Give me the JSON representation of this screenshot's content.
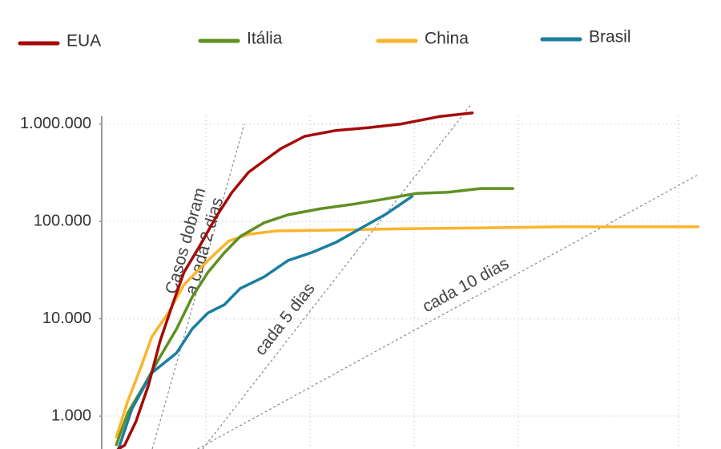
{
  "chart_data": {
    "type": "line",
    "log_scale": true,
    "grid": true,
    "legend": "top",
    "xlim": [
      0,
      57.5
    ],
    "xticks": [
      10,
      20,
      30,
      40,
      55.4
    ],
    "ylim": [
      460,
      1600000
    ],
    "yticks": [
      {
        "value": 1000,
        "label": "1.000"
      },
      {
        "value": 10000,
        "label": "10.000"
      },
      {
        "value": 100000,
        "label": "100.000"
      },
      {
        "value": 1000000,
        "label": "1.000.000"
      }
    ],
    "series": [
      {
        "name": "EUA",
        "color": "#a50a0a",
        "x": [
          1.6,
          2.2,
          3.3,
          4.5,
          5.6,
          6.8,
          7.9,
          9.5,
          11,
          12.5,
          14.1,
          15.6,
          17.2,
          19.5,
          22.5,
          25.6,
          28.7,
          32.5,
          35.6
        ],
        "values": [
          460,
          504,
          890,
          2100,
          5900,
          14000,
          30000,
          58000,
          112000,
          198000,
          320000,
          420000,
          560000,
          750000,
          860000,
          920000,
          1000000,
          1200000,
          1300000
        ]
      },
      {
        "name": "Itália",
        "color": "#5f9020",
        "x": [
          1.4,
          2.5,
          4.1,
          5.6,
          7.2,
          8.7,
          10.2,
          11.8,
          13.3,
          15.6,
          17.9,
          21,
          24.1,
          27.2,
          30.2,
          33.3,
          36.4,
          39.5
        ],
        "values": [
          510,
          1080,
          2100,
          4070,
          7900,
          16800,
          30000,
          48000,
          70000,
          97000,
          117000,
          135000,
          150000,
          170000,
          194000,
          200000,
          218000,
          218000
        ]
      },
      {
        "name": "China",
        "color": "#fbb42c",
        "x": [
          1.4,
          2.5,
          3.7,
          4.8,
          6.4,
          7.9,
          10.2,
          12.2,
          14.1,
          16.8,
          21,
          28.7,
          36.4,
          44.1,
          57.3
        ],
        "values": [
          610,
          1430,
          3060,
          6500,
          11500,
          22400,
          39700,
          63000,
          74000,
          80000,
          81000,
          84000,
          86000,
          88000,
          88000
        ]
      },
      {
        "name": "Brasil",
        "color": "#1a7ea0",
        "x": [
          1.6,
          2.9,
          4.8,
          7.2,
          8.7,
          10.2,
          11.8,
          13.3,
          15.6,
          17.9,
          20.2,
          22.5,
          24.8,
          27.2,
          29.8
        ],
        "values": [
          460,
          1190,
          2780,
          4470,
          7900,
          11500,
          14000,
          20500,
          27000,
          39700,
          48000,
          61000,
          84000,
          117000,
          180000
        ]
      }
    ],
    "reference_lines": [
      {
        "label": [
          "Casos dobram",
          "a cada 2 dias"
        ],
        "x": [
          4.85,
          13.7
        ],
        "values": [
          460,
          1000000
        ]
      },
      {
        "label": [
          "cada 5 dias"
        ],
        "x": [
          9.7,
          35.5
        ],
        "values": [
          460,
          1600000
        ]
      },
      {
        "label": [
          "cada 10 dias"
        ],
        "x": [
          9.2,
          57.3
        ],
        "values": [
          460,
          302000
        ]
      }
    ]
  }
}
